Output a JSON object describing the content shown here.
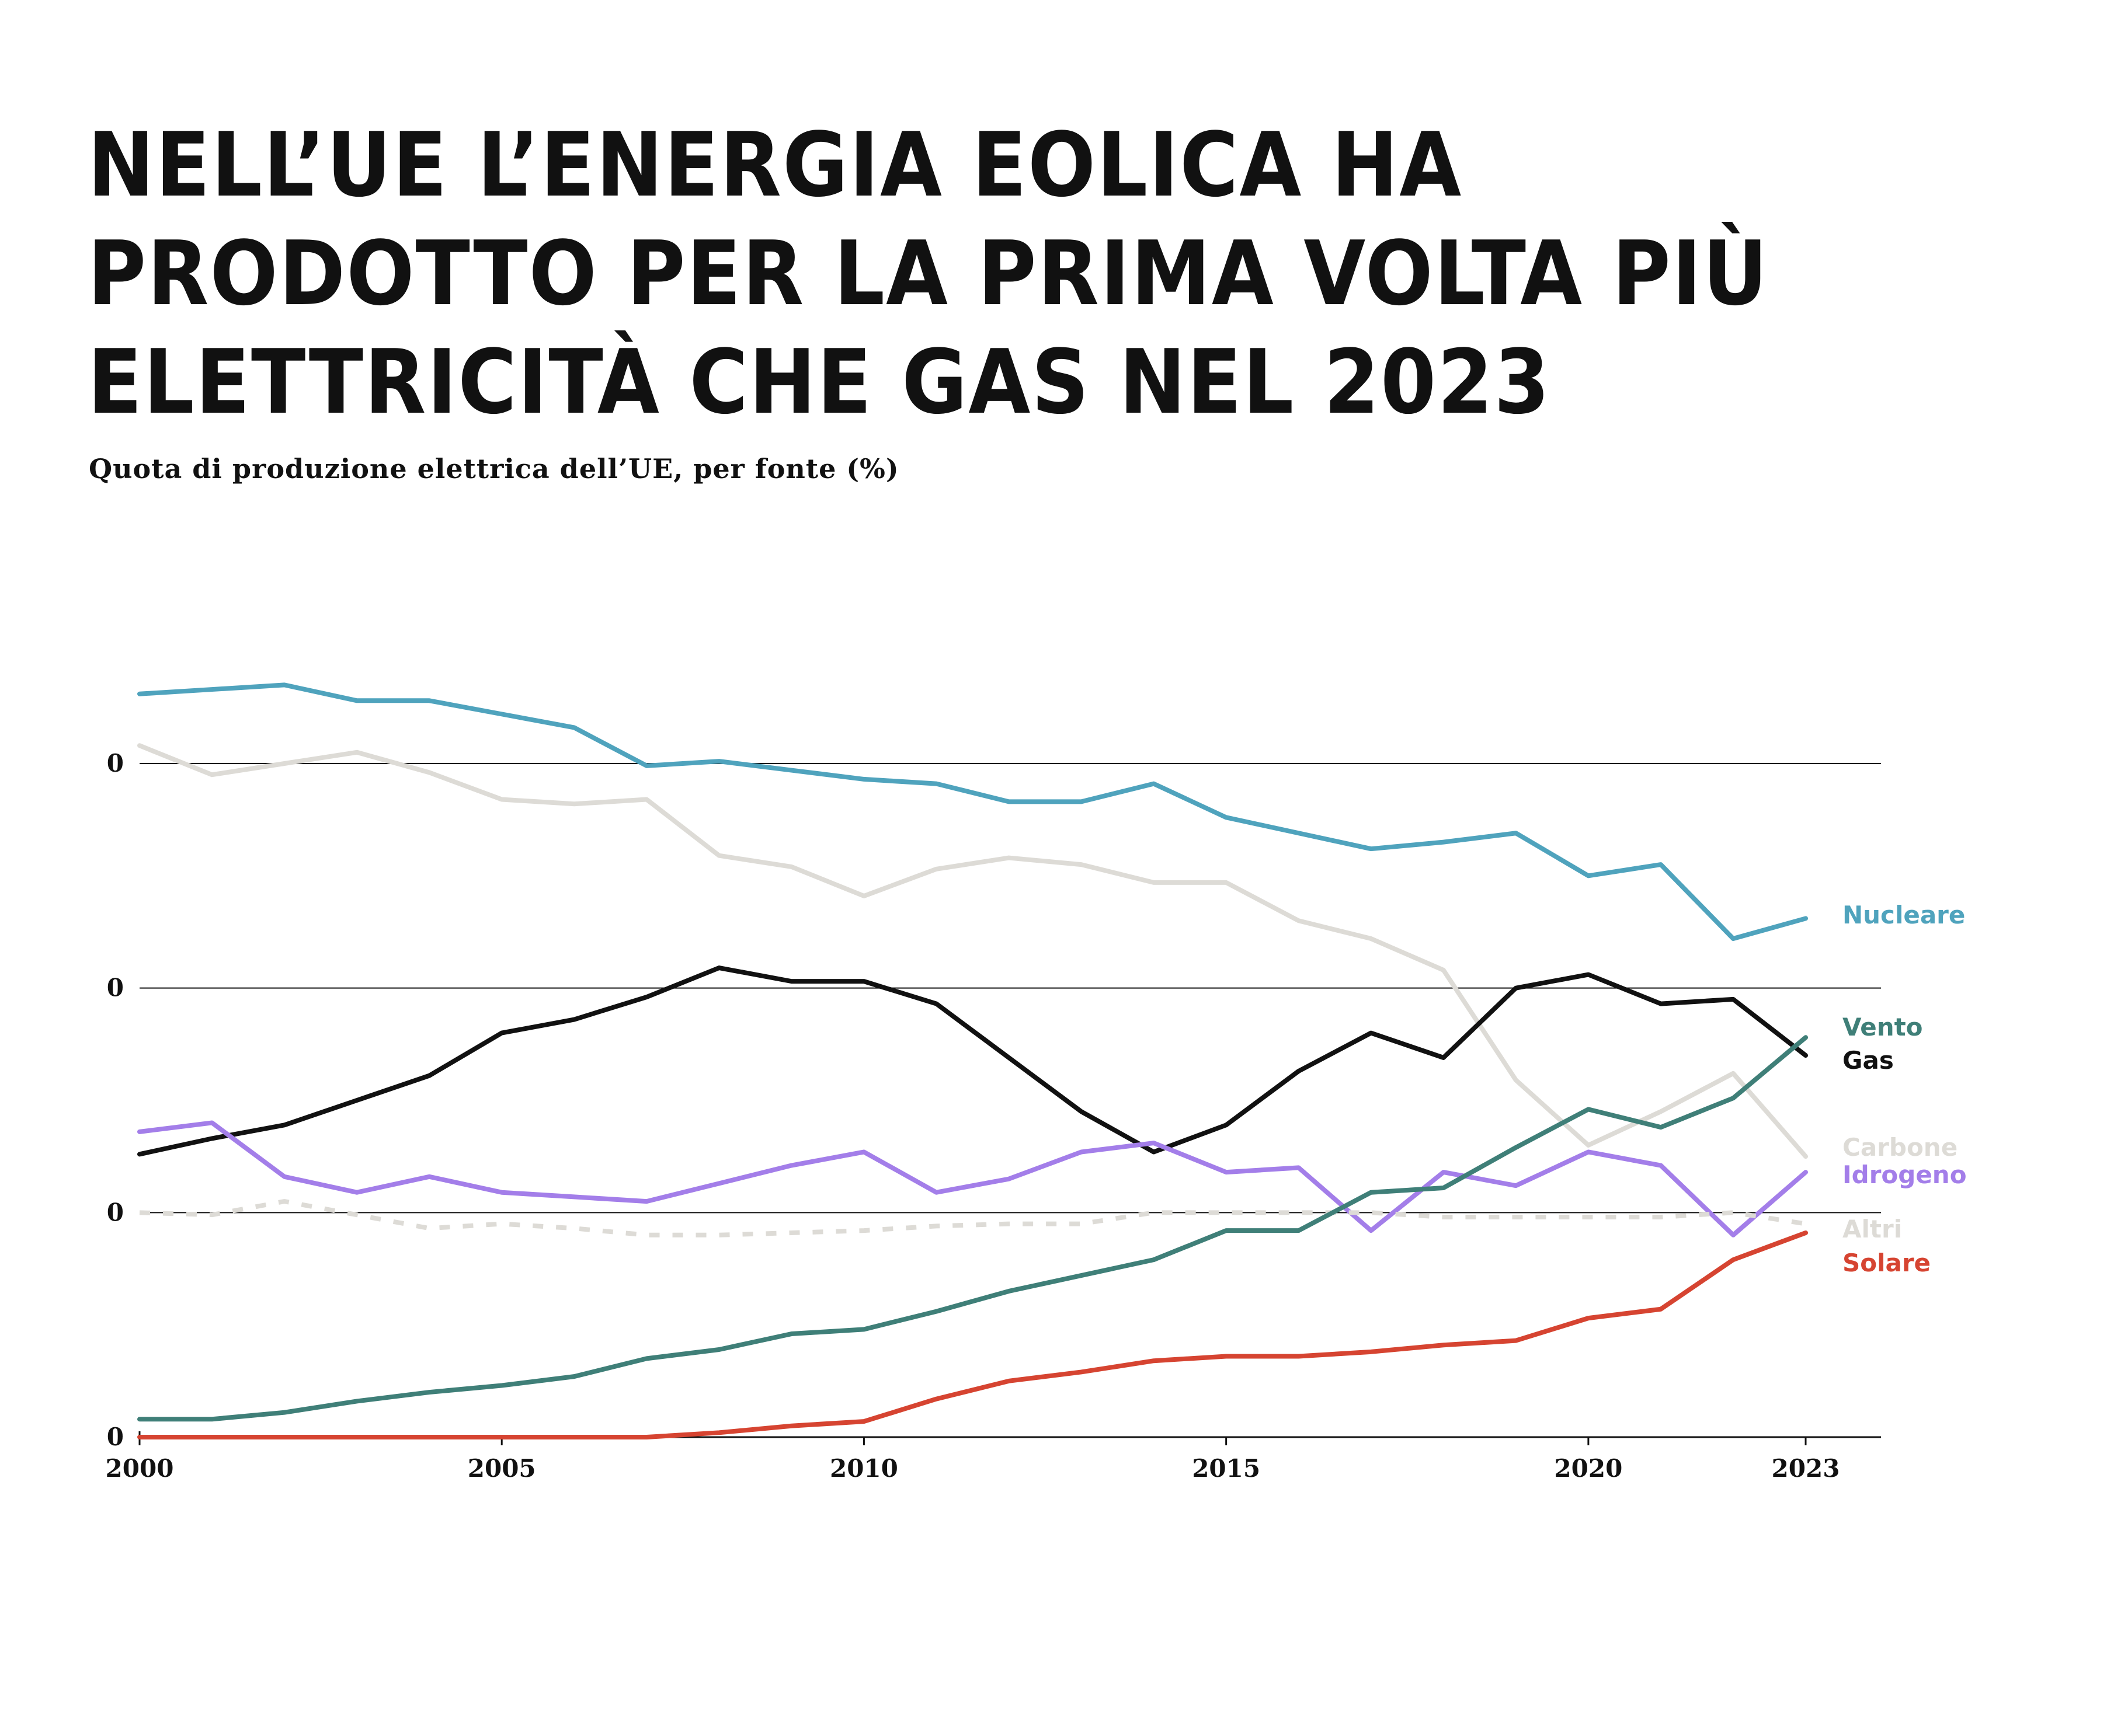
{
  "title": "NELL’UE L’ENERGIA EOLICA HA PRODOTTO PER LA PRIMA VOLTA PIÙ ELETTRICITÀ CHE GAS NEL 2023",
  "subtitle": "Quota di produzione elettrica dell’UE, per fonte (%)",
  "chart_data": {
    "type": "line",
    "title": "NELL’UE L’ENERGIA EOLICA HA PRODOTTO PER LA PRIMA VOLTA PIÙ ELETTRICITÀ CHE GAS NEL 2023",
    "subtitle": "Quota di produzione elettrica dell’UE, per fonte (%)",
    "x": [
      2000,
      2001,
      2002,
      2003,
      2004,
      2005,
      2006,
      2007,
      2008,
      2009,
      2010,
      2011,
      2012,
      2013,
      2014,
      2015,
      2016,
      2017,
      2018,
      2019,
      2020,
      2021,
      2022,
      2023
    ],
    "xticks": [
      "2000",
      "2005",
      "2010",
      "2015",
      "2020",
      "2023"
    ],
    "ylim": [
      0,
      30
    ],
    "yticks": [
      0,
      10,
      20,
      30
    ],
    "ytick_labels": [
      "0",
      "0",
      "0",
      "0"
    ],
    "grid": true,
    "series": [
      {
        "name": "Nucleare",
        "color": "#4fa3bd",
        "dash": false,
        "values": [
          33.1,
          33.3,
          33.5,
          32.8,
          32.8,
          32.2,
          31.6,
          29.9,
          30.1,
          29.7,
          29.3,
          29.1,
          28.3,
          28.3,
          29.1,
          27.6,
          26.9,
          26.2,
          26.5,
          26.9,
          25.0,
          25.5,
          22.2,
          23.1
        ]
      },
      {
        "name": "Carbone",
        "color": "#dddbd6",
        "dash": false,
        "values": [
          30.8,
          29.5,
          30.0,
          30.5,
          29.6,
          28.4,
          28.2,
          28.4,
          25.9,
          25.4,
          24.1,
          25.3,
          25.8,
          25.5,
          24.7,
          24.7,
          23.0,
          22.2,
          20.8,
          15.9,
          13.0,
          14.5,
          16.2,
          12.5
        ]
      },
      {
        "name": "Gas",
        "color": "#111111",
        "dash": false,
        "values": [
          12.6,
          13.3,
          13.9,
          15.0,
          16.1,
          18.0,
          18.6,
          19.6,
          20.9,
          20.3,
          20.3,
          19.3,
          16.9,
          14.5,
          12.7,
          13.9,
          16.3,
          18.0,
          16.9,
          20.0,
          20.6,
          19.3,
          19.5,
          17.0
        ]
      },
      {
        "name": "Idrogeno",
        "color": "#a37ee9",
        "dash": false,
        "values": [
          13.6,
          14.0,
          11.6,
          10.9,
          11.6,
          10.9,
          10.7,
          10.5,
          11.3,
          12.1,
          12.7,
          10.9,
          11.5,
          12.7,
          13.1,
          11.8,
          12.0,
          9.2,
          11.8,
          11.2,
          12.7,
          12.1,
          9.0,
          11.8
        ]
      },
      {
        "name": "Altri",
        "color": "#dddbd6",
        "dash": true,
        "values": [
          10.0,
          9.9,
          10.5,
          9.9,
          9.3,
          9.5,
          9.3,
          9.0,
          9.0,
          9.1,
          9.2,
          9.4,
          9.5,
          9.5,
          10.0,
          10.0,
          10.0,
          10.0,
          9.8,
          9.8,
          9.8,
          9.8,
          10.0,
          9.5
        ]
      },
      {
        "name": "Vento",
        "color": "#3f7f78",
        "dash": false,
        "values": [
          0.8,
          0.8,
          1.1,
          1.6,
          2.0,
          2.3,
          2.7,
          3.5,
          3.9,
          4.6,
          4.8,
          5.6,
          6.5,
          7.2,
          7.9,
          9.2,
          9.2,
          10.9,
          11.1,
          12.9,
          14.6,
          13.8,
          15.1,
          17.8
        ]
      },
      {
        "name": "Solare",
        "color": "#d64431",
        "dash": false,
        "values": [
          0.0,
          0.0,
          0.0,
          0.0,
          0.0,
          0.0,
          0.0,
          0.0,
          0.2,
          0.5,
          0.7,
          1.7,
          2.5,
          2.9,
          3.4,
          3.6,
          3.6,
          3.8,
          4.1,
          4.3,
          5.3,
          5.7,
          7.9,
          9.1
        ]
      }
    ]
  }
}
